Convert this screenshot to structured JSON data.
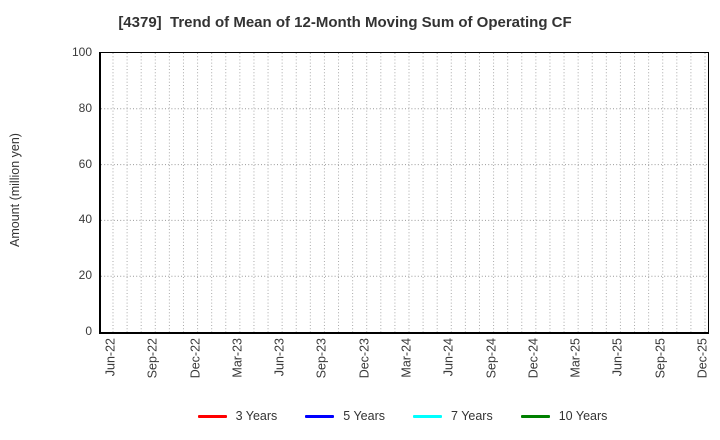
{
  "chart_data": {
    "type": "line",
    "title": "[4379]  Trend of Mean of 12-Month Moving Sum of Operating CF",
    "ylabel": "Amount (million yen)",
    "xlabel": "",
    "ylim": [
      0,
      100
    ],
    "yticks": [
      0,
      20,
      40,
      60,
      80,
      100
    ],
    "x_tick_labels": [
      "Jun-22",
      "Sep-22",
      "Dec-22",
      "Mar-23",
      "Jun-23",
      "Sep-23",
      "Dec-23",
      "Mar-24",
      "Jun-24",
      "Sep-24",
      "Dec-24",
      "Mar-25",
      "Jun-25",
      "Sep-25",
      "Dec-25"
    ],
    "x_gridline_interval": "monthly",
    "grid": "dotted",
    "grid_color": "#aaaaaa",
    "axis_color": "#000000",
    "legend_position": "bottom",
    "series": [
      {
        "name": "3 Years",
        "color": "#ff0000",
        "values": []
      },
      {
        "name": "5 Years",
        "color": "#0000ff",
        "values": []
      },
      {
        "name": "7 Years",
        "color": "#00ffff",
        "values": []
      },
      {
        "name": "10 Years",
        "color": "#008000",
        "values": []
      }
    ],
    "plot_content": "empty (no data lines drawn within y-range)"
  }
}
